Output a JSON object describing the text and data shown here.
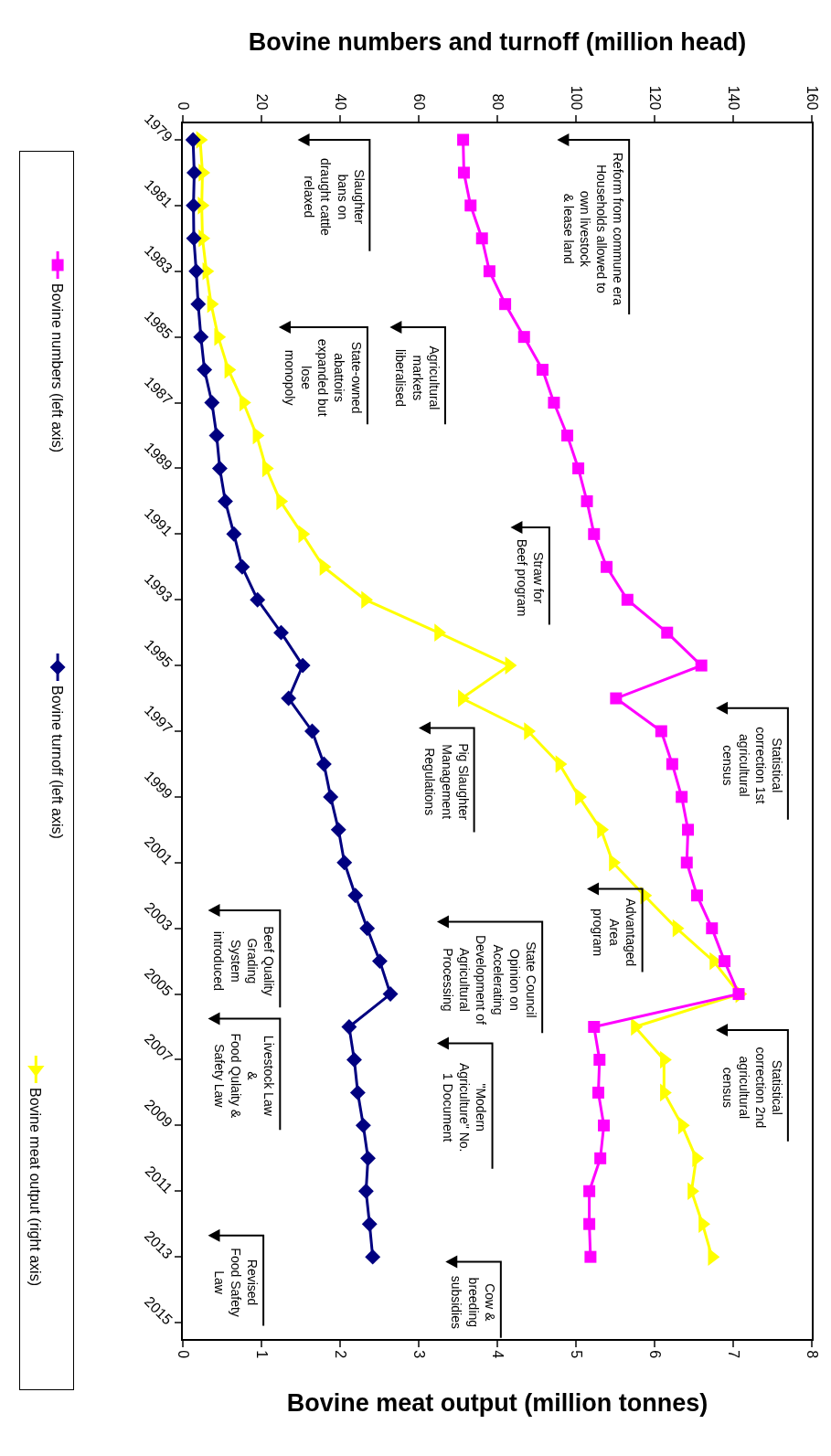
{
  "chart_data": {
    "type": "line",
    "x2label": "Bovine numbers and turnoff (million head)",
    "xlabel": "Bovine meat output (million tonnes)",
    "series": [
      {
        "name": "Bovine numbers (left axis)",
        "color": "#ff00ff",
        "marker": "square",
        "axis": "x2",
        "x": [
          71.3,
          71.5,
          73.2,
          76.1,
          78.0,
          82.0,
          86.8,
          91.5,
          94.4,
          97.8,
          100.6,
          102.8,
          104.6,
          107.8,
          113.1,
          123.2,
          131.9,
          110.2,
          121.7,
          124.5,
          126.9,
          128.5,
          128.2,
          130.8,
          134.6,
          137.8,
          141.4,
          104.6,
          106.0,
          105.7,
          107.1,
          106.2,
          103.4,
          103.4,
          103.7
        ],
        "values": [
          1979,
          1980,
          1981,
          1982,
          1983,
          1984,
          1985,
          1986,
          1987,
          1988,
          1989,
          1990,
          1991,
          1992,
          1993,
          1994,
          1995,
          1996,
          1997,
          1998,
          1999,
          2000,
          2001,
          2002,
          2003,
          2004,
          2005,
          2006,
          2007,
          2008,
          2009,
          2010,
          2011,
          2012,
          2013
        ]
      },
      {
        "name": "Bovine turnoff (left axis)",
        "color": "#000080",
        "marker": "diamond",
        "axis": "x2",
        "x": [
          2.6,
          2.9,
          2.7,
          2.8,
          3.4,
          3.9,
          4.6,
          5.5,
          7.4,
          8.6,
          9.4,
          10.8,
          13.0,
          15.1,
          19.0,
          25.0,
          30.5,
          26.9,
          32.9,
          35.9,
          37.6,
          39.6,
          41.1,
          43.9,
          46.9,
          50.1,
          52.8,
          42.3,
          43.6,
          44.5,
          45.9,
          47.1,
          46.6,
          47.5,
          48.3
        ],
        "values": [
          1979,
          1980,
          1981,
          1982,
          1983,
          1984,
          1985,
          1986,
          1987,
          1988,
          1989,
          1990,
          1991,
          1992,
          1993,
          1994,
          1995,
          1996,
          1997,
          1998,
          1999,
          2000,
          2001,
          2002,
          2003,
          2004,
          2005,
          2006,
          2007,
          2008,
          2009,
          2010,
          2011,
          2012,
          2013
        ]
      },
      {
        "name": "Bovine meat output (right axis)",
        "color": "#ffff00",
        "marker": "triangle",
        "x": [
          0.22,
          0.25,
          0.24,
          0.25,
          0.3,
          0.36,
          0.45,
          0.58,
          0.77,
          0.94,
          1.06,
          1.24,
          1.52,
          1.79,
          2.32,
          3.25,
          4.15,
          3.55,
          4.39,
          4.79,
          5.04,
          5.32,
          5.47,
          5.87,
          6.28,
          6.75,
          7.08,
          5.75,
          6.12,
          6.12,
          6.35,
          6.53,
          6.47,
          6.61,
          6.73
        ],
        "values": [
          1979,
          1980,
          1981,
          1982,
          1983,
          1984,
          1985,
          1986,
          1987,
          1988,
          1989,
          1990,
          1991,
          1992,
          1993,
          1994,
          1995,
          1996,
          1997,
          1998,
          1999,
          2000,
          2001,
          2002,
          2003,
          2004,
          2005,
          2006,
          2007,
          2008,
          2009,
          2010,
          2011,
          2012,
          2013
        ]
      }
    ],
    "ylim": [
      2015.5,
      1978.5
    ],
    "yticks": [
      1979,
      1981,
      1983,
      1985,
      1987,
      1989,
      1991,
      1993,
      1995,
      1997,
      1999,
      2001,
      2003,
      2005,
      2007,
      2009,
      2011,
      2013,
      2015
    ],
    "x2lim": [
      0,
      160
    ],
    "x2ticks": [
      0,
      20,
      40,
      60,
      80,
      100,
      120,
      140,
      160
    ],
    "xlim": [
      0,
      8
    ],
    "xticks": [
      0,
      1,
      2,
      3,
      4,
      5,
      6,
      7,
      8
    ],
    "legend": "left",
    "line_style": "solid",
    "annotations": [
      "Reform from commune era\nHouseholds allowed to\nown livestock\n& lease land",
      "Slaughter\nbans on\ndraught cattle\nrelaxed",
      "Agricultural\nmarkets\nliberalised",
      "State-owned\nabattoirs\nexpanded but\nlose\nmonopoly",
      "Straw for\nBeef program",
      "Statistical\ncorrection 1st\nagricultural\ncensus",
      "Pig Slaughter\nManagement\nRegulations",
      "Advantaged\nArea\nprogram",
      "State Council\nOpinion on\nAccelerating\nDevelopment of\nAgricultural\nProcessing",
      "Beef Quality\nGrading\nSystem\nintroduced",
      "Livestock Law\n&\nFood Qulaity &\nSafety Law",
      "Statistical\ncorrection 2nd\nagricultural\ncensus",
      "\"Modern\nAgriculture\" No.\n1 Document",
      "Revised\nFood Safety\nLaw",
      "Cow &\nbreeding\nsubsidies"
    ]
  }
}
